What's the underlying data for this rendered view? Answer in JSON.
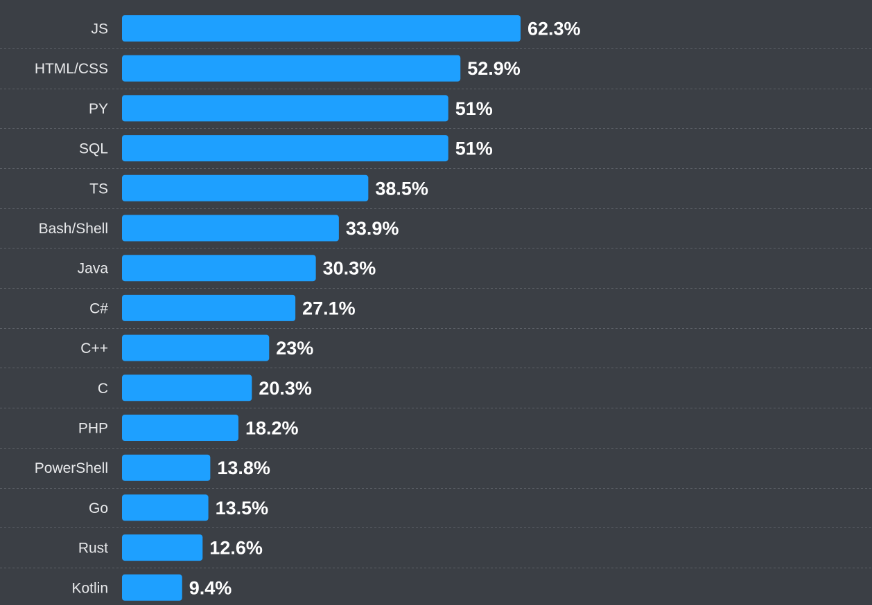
{
  "chart_data": {
    "type": "bar",
    "orientation": "horizontal",
    "categories": [
      "JS",
      "HTML/CSS",
      "PY",
      "SQL",
      "TS",
      "Bash/Shell",
      "Java",
      "C#",
      "C++",
      "C",
      "PHP",
      "PowerShell",
      "Go",
      "Rust",
      "Kotlin"
    ],
    "values": [
      62.3,
      52.9,
      51,
      51,
      38.5,
      33.9,
      30.3,
      27.1,
      23,
      20.3,
      18.2,
      13.8,
      13.5,
      12.6,
      9.4
    ],
    "value_labels": [
      "62.3%",
      "52.9%",
      "51%",
      "51%",
      "38.5%",
      "33.9%",
      "30.3%",
      "27.1%",
      "23%",
      "20.3%",
      "18.2%",
      "13.8%",
      "13.5%",
      "12.6%",
      "9.4%"
    ],
    "unit": "%",
    "title": "",
    "xlabel": "",
    "ylabel": "",
    "xlim": [
      0,
      100
    ],
    "grid": "dashed row dividers",
    "legend": "none",
    "colors": {
      "background": "#3b3f45",
      "bar": "#1ea0ff",
      "divider": "#5d6168",
      "category_text": "#e9eaec",
      "value_text": "#ffffff"
    }
  }
}
